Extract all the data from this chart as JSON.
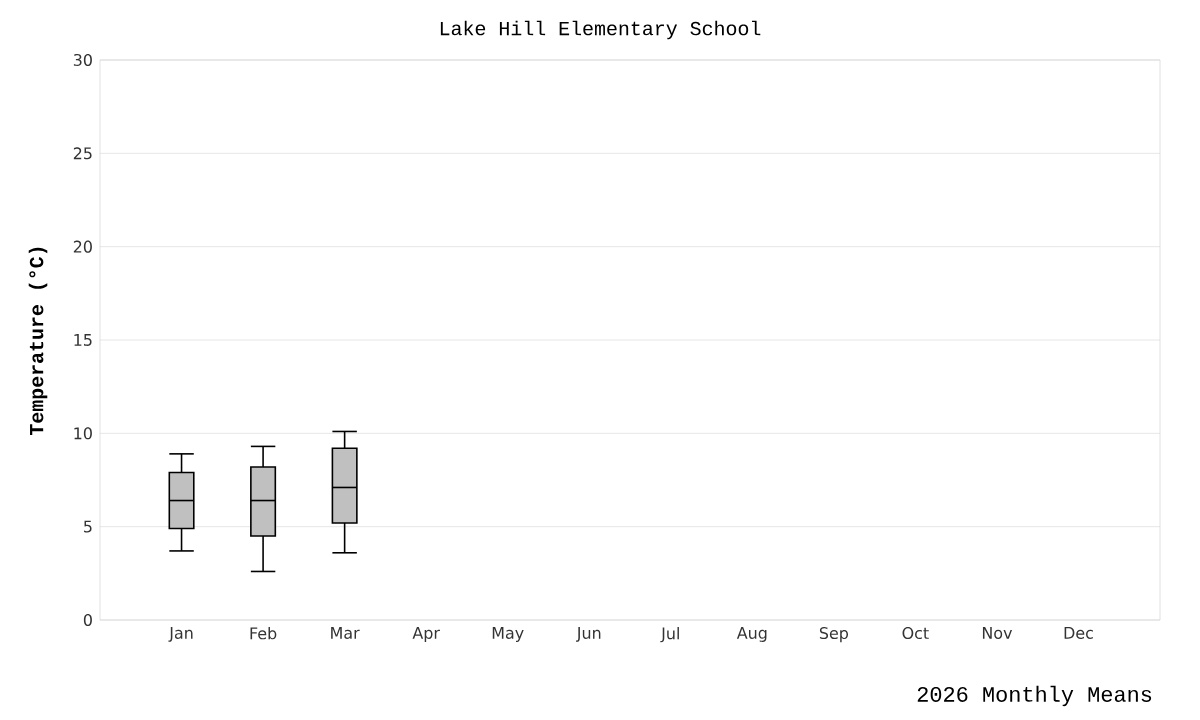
{
  "chart_data": {
    "type": "box",
    "title": "Lake Hill Elementary School",
    "xlabel": "2026 Monthly Means",
    "ylabel": "Temperature (°C)",
    "categories": [
      "Jan",
      "Feb",
      "Mar",
      "Apr",
      "May",
      "Jun",
      "Jul",
      "Aug",
      "Sep",
      "Oct",
      "Nov",
      "Dec"
    ],
    "boxes": [
      {
        "low": 3.7,
        "q1": 4.9,
        "median": 6.4,
        "q3": 7.9,
        "high": 8.9
      },
      {
        "low": 2.6,
        "q1": 4.5,
        "median": 6.4,
        "q3": 8.2,
        "high": 9.3
      },
      {
        "low": 3.6,
        "q1": 5.2,
        "median": 7.1,
        "q3": 9.2,
        "high": 10.1
      },
      null,
      null,
      null,
      null,
      null,
      null,
      null,
      null,
      null
    ],
    "color": "#c0c0c0",
    "ylim": [
      0,
      30
    ],
    "yticks": [
      0,
      5,
      10,
      15,
      20,
      25,
      30
    ],
    "grid": "y"
  }
}
